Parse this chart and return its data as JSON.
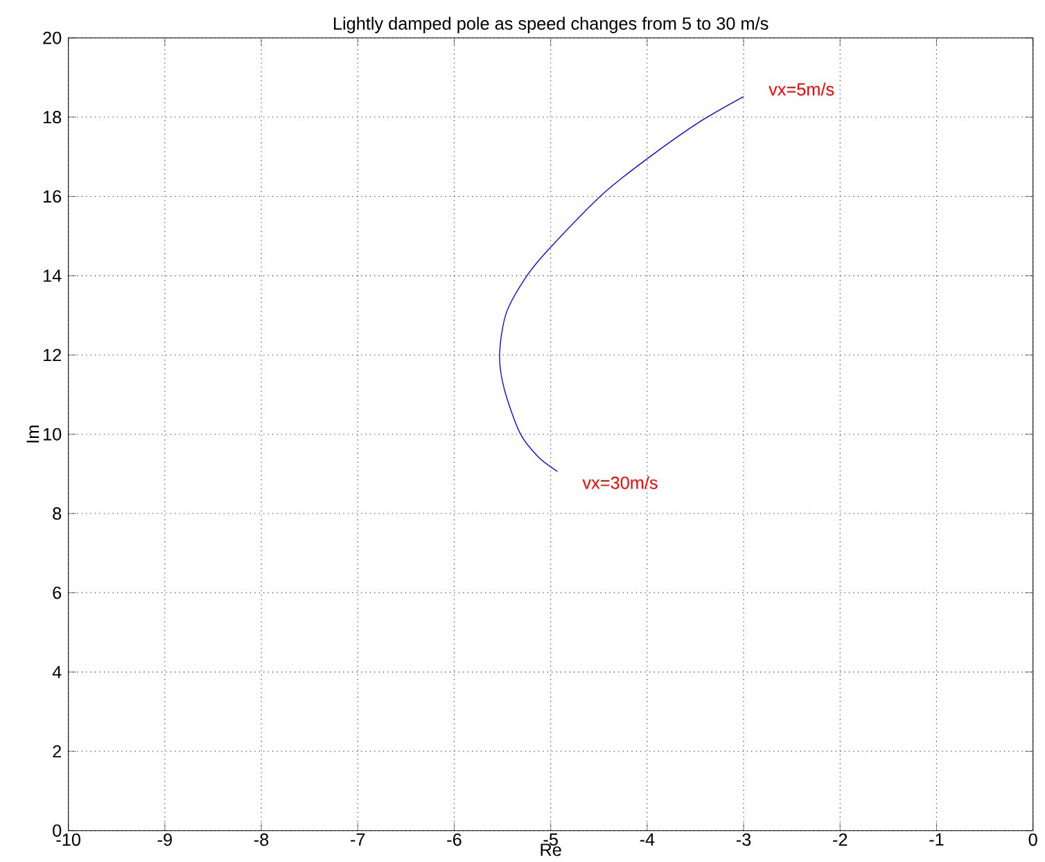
{
  "chart_data": {
    "type": "line",
    "title": "Lightly damped pole as speed changes from 5 to 30 m/s",
    "xlabel": "Re",
    "ylabel": "Im",
    "x": [
      -3.0,
      -3.47,
      -4.0,
      -4.46,
      -5.0,
      -5.24,
      -5.46,
      -5.53,
      -5.48,
      -5.32,
      -5.13,
      -4.93
    ],
    "series": [
      {
        "color": "#0000ff",
        "values": [
          18.52,
          17.86,
          16.95,
          16.06,
          14.72,
          14.02,
          13.06,
          12.0,
          11.13,
          10.04,
          9.43,
          9.06
        ]
      }
    ],
    "xlim": [
      -10,
      0
    ],
    "ylim": [
      0,
      20
    ],
    "xticks": [
      -10,
      -9,
      -8,
      -7,
      -6,
      -5,
      -4,
      -3,
      -2,
      -1,
      0
    ],
    "yticks": [
      0,
      2,
      4,
      6,
      8,
      10,
      12,
      14,
      16,
      18,
      20
    ],
    "grid": true,
    "marker": "none",
    "line_style": "solid",
    "annotations": [
      {
        "text": "vx=5m/s",
        "x": -3.0,
        "y": 18.52
      },
      {
        "text": "vx=30m/s",
        "x": -4.93,
        "y": 9.06
      }
    ]
  }
}
